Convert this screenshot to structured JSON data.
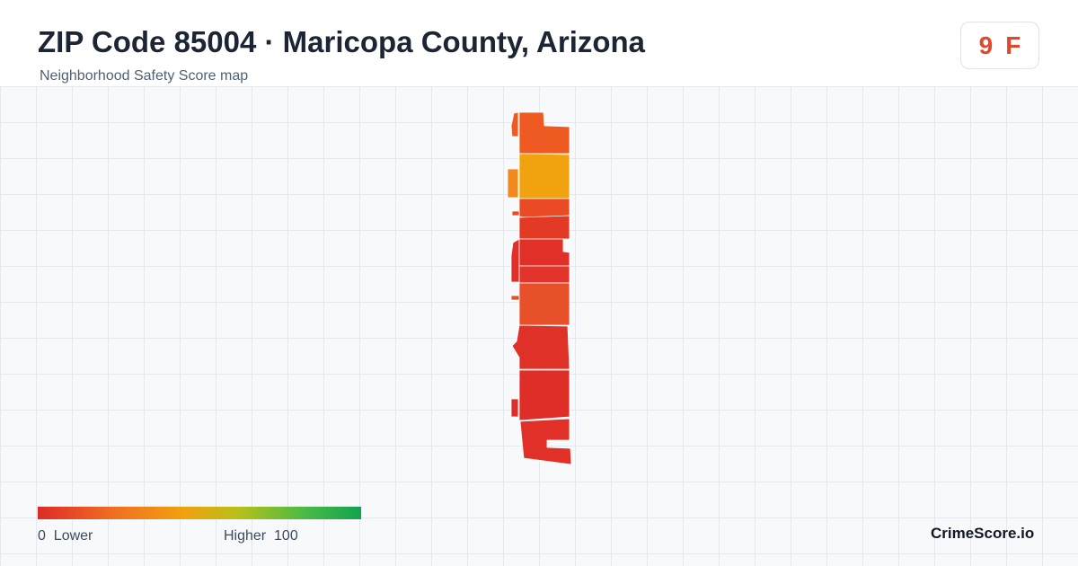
{
  "header": {
    "title": "ZIP Code 85004 · Maricopa County, Arizona",
    "subtitle": "Neighborhood Safety Score map"
  },
  "score_badge": {
    "score": "9",
    "grade": "F",
    "color": "#e0472c"
  },
  "legend": {
    "low_value": "0",
    "low_label": "Lower",
    "high_label": "Higher",
    "high_value": "100",
    "gradient_colors": [
      "#dd2b27",
      "#ef6b22",
      "#f1a10e",
      "#b7c01a",
      "#4cbb45",
      "#12a24f"
    ]
  },
  "map": {
    "background": "#f7f9fb",
    "grid_color": "#e3e9ef",
    "region_colors": [
      "#ee5a22",
      "#f08a1c",
      "#f0a20f",
      "#ea4a24",
      "#e13027",
      "#e03128",
      "#e8502a"
    ]
  },
  "brand": "CrimeScore.io"
}
